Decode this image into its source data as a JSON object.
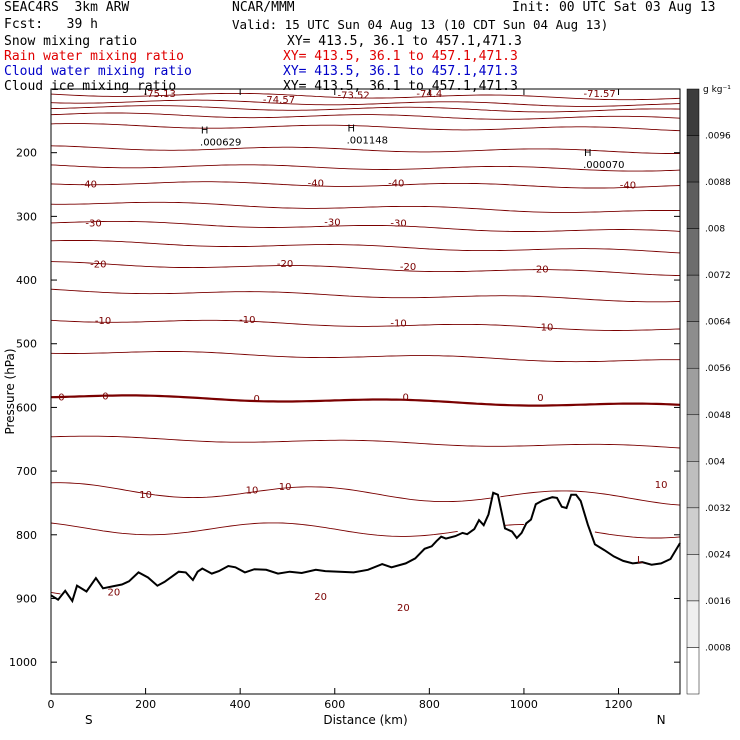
{
  "header": {
    "model_line": "SEAC4RS  3km ARW",
    "org": "NCAR/MMM",
    "init": "Init: 00 UTC Sat 03 Aug 13",
    "fcst": "Fcst:   39 h",
    "valid": "Valid: 15 UTC Sun 04 Aug 13 (10 CDT Sun 04 Aug 13)",
    "fields": [
      {
        "name": "Snow mixing ratio",
        "xy": "XY= 413.5, 36.1 to 457.1,471.3",
        "color": "#000000"
      },
      {
        "name": "Rain water mixing ratio",
        "xy": "XY= 413.5, 36.1 to 457.1,471.3",
        "color": "#e00000"
      },
      {
        "name": "Cloud water mixing ratio",
        "xy": "XY= 413.5, 36.1 to 457.1,471.3",
        "color": "#0000c8"
      },
      {
        "name": "Cloud ice mixing ratio",
        "xy": "XY= 413.5, 36.1 to 457.1,471.3",
        "color": "#000000"
      }
    ]
  },
  "chart_data": {
    "type": "line",
    "xlabel": "Distance (km)",
    "ylabel": "Pressure (hPa)",
    "xlim": [
      0,
      1330
    ],
    "ylim": [
      1050,
      100
    ],
    "x_ticks": [
      "0",
      "200",
      "400",
      "600",
      "800",
      "1000",
      "1200"
    ],
    "y_ticks": [
      "200",
      "300",
      "400",
      "500",
      "600",
      "700",
      "800",
      "900",
      "1000"
    ],
    "y_tick_values": [
      200,
      300,
      400,
      500,
      600,
      700,
      800,
      900,
      1000
    ],
    "x_end_labels": {
      "left": "S",
      "right": "N"
    },
    "grid": false,
    "isotherm_labels": [
      {
        "text": "-75.13",
        "x": 230,
        "p": 106
      },
      {
        "text": "-74.57",
        "x": 482,
        "p": 116
      },
      {
        "text": "-73.52",
        "x": 640,
        "p": 109
      },
      {
        "text": "-74.4",
        "x": 800,
        "p": 106
      },
      {
        "text": "-71.57",
        "x": 1160,
        "p": 106
      },
      {
        "text": "-40",
        "x": 80,
        "p": 248
      },
      {
        "text": "-40",
        "x": 560,
        "p": 247
      },
      {
        "text": "-40",
        "x": 730,
        "p": 247
      },
      {
        "text": "-40",
        "x": 1220,
        "p": 250
      },
      {
        "text": "-30",
        "x": 90,
        "p": 310
      },
      {
        "text": "-30",
        "x": 595,
        "p": 308
      },
      {
        "text": "-30",
        "x": 735,
        "p": 310
      },
      {
        "text": "-20",
        "x": 100,
        "p": 374
      },
      {
        "text": "-20",
        "x": 495,
        "p": 373
      },
      {
        "text": "-20",
        "x": 755,
        "p": 378
      },
      {
        "text": "-20",
        "x": 1035,
        "p": 382
      },
      {
        "text": "-10",
        "x": 110,
        "p": 463
      },
      {
        "text": "-10",
        "x": 415,
        "p": 461
      },
      {
        "text": "-10",
        "x": 735,
        "p": 467
      },
      {
        "text": "-10",
        "x": 1045,
        "p": 473
      },
      {
        "text": "0",
        "x": 22,
        "p": 583
      },
      {
        "text": "0",
        "x": 115,
        "p": 581
      },
      {
        "text": "0",
        "x": 435,
        "p": 585
      },
      {
        "text": "0",
        "x": 750,
        "p": 583
      },
      {
        "text": "0",
        "x": 1035,
        "p": 584
      },
      {
        "text": "10",
        "x": 200,
        "p": 736
      },
      {
        "text": "10",
        "x": 425,
        "p": 729
      },
      {
        "text": "10",
        "x": 495,
        "p": 723
      },
      {
        "text": "10",
        "x": 1290,
        "p": 720
      },
      {
        "text": "20",
        "x": 133,
        "p": 889
      },
      {
        "text": "20",
        "x": 570,
        "p": 896
      },
      {
        "text": "20",
        "x": 745,
        "p": 913
      }
    ],
    "extrema": [
      {
        "symbol": "H",
        "value": ".000629",
        "x": 325,
        "p": 170
      },
      {
        "symbol": "H",
        "value": ".001148",
        "x": 635,
        "p": 167
      },
      {
        "symbol": "H",
        "value": ".000070",
        "x": 1135,
        "p": 205
      },
      {
        "symbol": "L",
        "value": "",
        "x": 1245,
        "p": 844
      }
    ],
    "isotherm_levels": [
      -75,
      -70,
      -65,
      -60,
      -55,
      -50,
      -45,
      -40,
      -35,
      -30,
      -25,
      -20,
      -15,
      -10,
      -5,
      0,
      5,
      10,
      15,
      20,
      25
    ],
    "isotherm_pressures": [
      108,
      119,
      128,
      140,
      157,
      192,
      220,
      247,
      278,
      309,
      340,
      374,
      416,
      462,
      512,
      582,
      647,
      728,
      789,
      889,
      901
    ],
    "terrain_pressure": {
      "x": [
        0,
        15,
        30,
        45,
        55,
        75,
        95,
        110,
        130,
        150,
        165,
        185,
        205,
        225,
        240,
        255,
        270,
        285,
        300,
        310,
        320,
        340,
        355,
        375,
        390,
        410,
        430,
        455,
        480,
        505,
        530,
        560,
        580,
        610,
        640,
        670,
        700,
        720,
        750,
        770,
        790,
        805,
        815,
        825,
        835,
        855,
        870,
        880,
        895,
        905,
        915,
        925,
        935,
        945,
        960,
        975,
        985,
        995,
        1005,
        1015,
        1025,
        1040,
        1060,
        1070,
        1080,
        1090,
        1100,
        1110,
        1120,
        1135,
        1150,
        1170,
        1190,
        1210,
        1230,
        1250,
        1270,
        1290,
        1310,
        1330
      ],
      "p": [
        895,
        902,
        888,
        904,
        880,
        889,
        868,
        884,
        881,
        878,
        873,
        859,
        867,
        880,
        874,
        866,
        858,
        859,
        871,
        858,
        853,
        861,
        857,
        849,
        851,
        859,
        854,
        855,
        861,
        858,
        860,
        855,
        857,
        858,
        859,
        855,
        846,
        851,
        845,
        837,
        822,
        818,
        810,
        803,
        806,
        802,
        797,
        799,
        791,
        777,
        785,
        768,
        734,
        737,
        790,
        795,
        805,
        797,
        782,
        776,
        752,
        746,
        741,
        742,
        756,
        758,
        737,
        737,
        747,
        784,
        815,
        824,
        834,
        841,
        845,
        843,
        847,
        845,
        838,
        813
      ]
    },
    "colorbar": {
      "unit": "g kg⁻¹",
      "labels": [
        ".0096",
        ".0088",
        ".008",
        ".0072",
        ".0064",
        ".0056",
        ".0048",
        ".004",
        ".0032",
        ".0024",
        ".0016",
        ".0008"
      ]
    }
  }
}
